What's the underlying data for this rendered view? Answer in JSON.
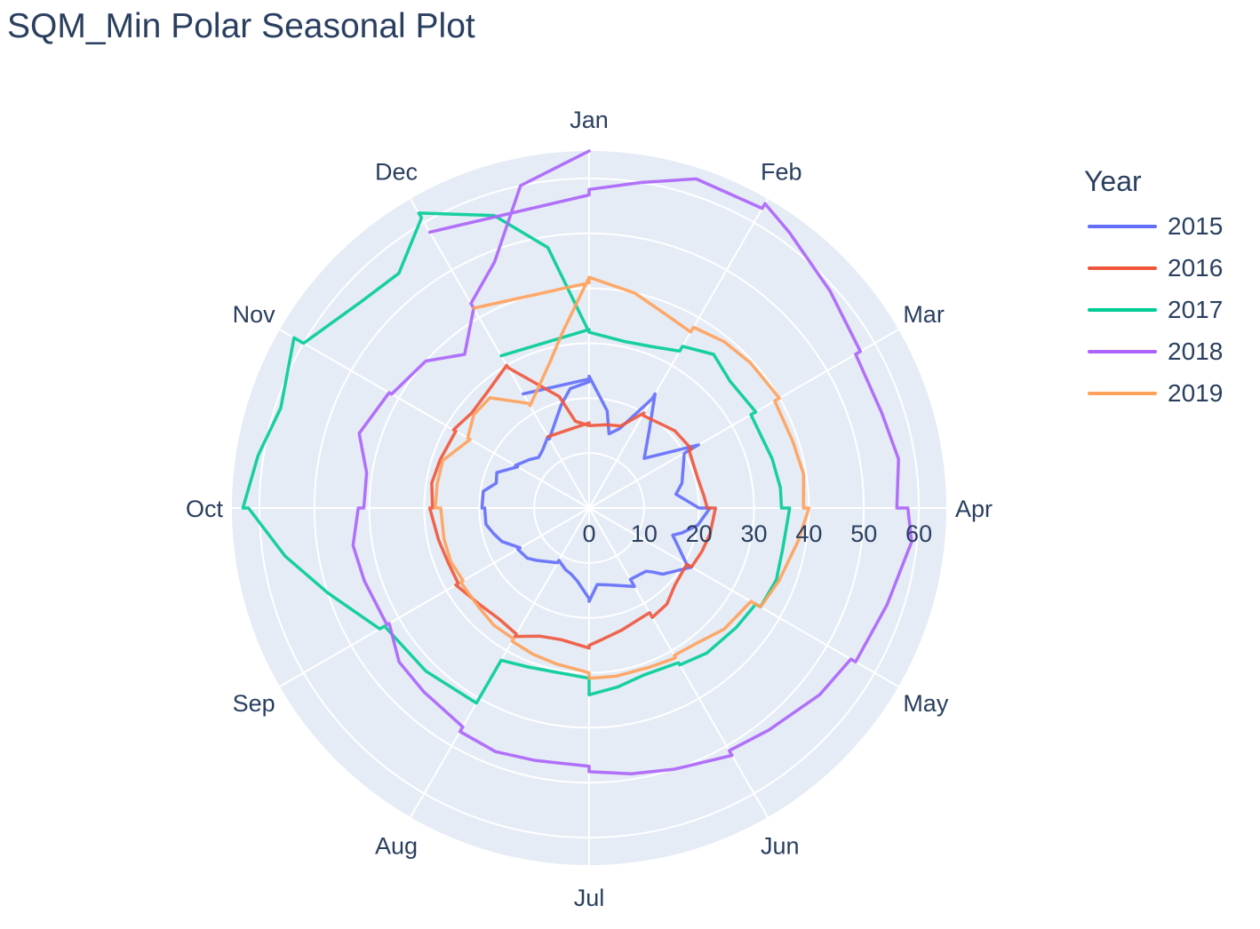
{
  "chart_data": {
    "type": "line",
    "subtype": "polar",
    "title": "SQM_Min Polar Seasonal Plot",
    "categories": [
      "Jan",
      "Feb",
      "Mar",
      "Apr",
      "May",
      "Jun",
      "Jul",
      "Aug",
      "Sep",
      "Oct",
      "Nov",
      "Dec"
    ],
    "radial_ticks": [
      0,
      10,
      20,
      30,
      40,
      50,
      60
    ],
    "radial_range": [
      0,
      65
    ],
    "grid": true,
    "legend": {
      "title": "Year",
      "position": "right"
    },
    "series": [
      {
        "name": "2015",
        "color": "#636efa",
        "points": [
          [
            -1,
            24
          ],
          [
            0,
            23.5
          ],
          [
            0,
            24
          ],
          [
            0.35,
            18
          ],
          [
            0.5,
            14
          ],
          [
            0.7,
            15.5
          ],
          [
            1,
            23
          ],
          [
            1,
            24
          ],
          [
            1.25,
            18
          ],
          [
            1.5,
            14.5
          ],
          [
            1.6,
            13.5
          ],
          [
            2,
            23
          ],
          [
            2,
            22.5
          ],
          [
            2,
            20
          ],
          [
            2.5,
            17.5
          ],
          [
            2.7,
            16
          ],
          [
            3,
            20
          ],
          [
            3,
            22
          ],
          [
            3.3,
            20
          ],
          [
            3.5,
            17.5
          ],
          [
            3.6,
            16
          ],
          [
            4,
            20.5
          ],
          [
            4,
            21.5
          ],
          [
            4.4,
            18
          ],
          [
            4.5,
            16.5
          ],
          [
            4.6,
            15.5
          ],
          [
            5,
            15
          ],
          [
            5,
            16.5
          ],
          [
            5.5,
            14.5
          ],
          [
            5.8,
            14
          ],
          [
            6,
            17
          ],
          [
            6,
            16.5
          ],
          [
            6.3,
            13.5
          ],
          [
            6.5,
            12.5
          ],
          [
            6.7,
            12
          ],
          [
            7,
            11
          ],
          [
            7,
            11.5
          ],
          [
            7.3,
            12.5
          ],
          [
            7.5,
            13.5
          ],
          [
            7.7,
            14.5
          ],
          [
            8,
            15
          ],
          [
            8,
            14.5
          ],
          [
            8.3,
            17
          ],
          [
            8.5,
            18
          ],
          [
            8.7,
            19
          ],
          [
            9,
            19
          ],
          [
            9,
            19.5
          ],
          [
            9.3,
            19.5
          ],
          [
            9.5,
            17.5
          ],
          [
            9.7,
            18
          ],
          [
            10,
            15
          ],
          [
            10,
            15.5
          ],
          [
            10.3,
            14
          ],
          [
            10.5,
            13
          ],
          [
            10.7,
            13.5
          ],
          [
            11,
            15
          ],
          [
            11,
            14.5
          ],
          [
            11.3,
            17
          ],
          [
            11.5,
            19.5
          ],
          [
            11.7,
            22
          ],
          [
            12,
            23
          ]
        ]
      },
      {
        "name": "2016",
        "color": "#EF553B",
        "points": [
          [
            -1,
            15
          ],
          [
            0,
            15.5
          ],
          [
            0,
            15
          ],
          [
            0.4,
            15.5
          ],
          [
            0.7,
            16
          ],
          [
            1,
            20
          ],
          [
            1,
            19.5
          ],
          [
            1.3,
            20
          ],
          [
            1.6,
            21
          ],
          [
            2,
            21.5
          ],
          [
            2,
            21
          ],
          [
            2.5,
            20.5
          ],
          [
            2.8,
            21
          ],
          [
            3,
            21.5
          ],
          [
            3,
            23
          ],
          [
            3.4,
            22.5
          ],
          [
            3.7,
            22
          ],
          [
            4,
            21.5
          ],
          [
            4,
            20.5
          ],
          [
            4.4,
            21
          ],
          [
            4.7,
            22.5
          ],
          [
            5,
            23
          ],
          [
            5,
            22
          ],
          [
            5.5,
            23
          ],
          [
            5.8,
            24
          ],
          [
            6,
            25
          ],
          [
            6,
            25.5
          ],
          [
            6.4,
            24.5
          ],
          [
            6.7,
            25
          ],
          [
            7,
            27
          ],
          [
            7,
            26.5
          ],
          [
            7.3,
            26
          ],
          [
            7.6,
            26.5
          ],
          [
            8,
            28
          ],
          [
            8,
            27.5
          ],
          [
            8.3,
            27.5
          ],
          [
            8.6,
            28
          ],
          [
            9,
            29
          ],
          [
            9,
            28.5
          ],
          [
            9.3,
            29
          ],
          [
            9.6,
            28.5
          ],
          [
            10,
            28
          ],
          [
            10,
            28.5
          ],
          [
            10.3,
            27.5
          ],
          [
            10.6,
            28
          ],
          [
            11,
            30
          ],
          [
            11,
            29.5
          ],
          [
            11.5,
            21
          ],
          [
            11.7,
            16
          ],
          [
            12,
            15
          ]
        ]
      },
      {
        "name": "2017",
        "color": "#00cc96",
        "points": [
          [
            -1,
            32
          ],
          [
            0,
            32.5
          ],
          [
            0,
            32
          ],
          [
            0.4,
            31
          ],
          [
            0.7,
            31.5
          ],
          [
            1,
            33
          ],
          [
            1,
            34
          ],
          [
            1.3,
            36
          ],
          [
            1.6,
            34.5
          ],
          [
            2,
            35
          ],
          [
            2,
            34
          ],
          [
            2.5,
            34.5
          ],
          [
            2.8,
            35
          ],
          [
            3,
            35
          ],
          [
            3,
            36.5
          ],
          [
            3.4,
            36
          ],
          [
            3.7,
            36.5
          ],
          [
            4,
            36
          ],
          [
            4,
            35
          ],
          [
            4.3,
            34.5
          ],
          [
            4.7,
            34
          ],
          [
            5,
            33
          ],
          [
            5,
            32.5
          ],
          [
            5.4,
            32
          ],
          [
            5.7,
            33
          ],
          [
            6,
            34
          ],
          [
            6,
            31
          ],
          [
            6.4,
            30.5
          ],
          [
            6.7,
            31
          ],
          [
            7,
            32
          ],
          [
            7,
            41
          ],
          [
            7.5,
            42
          ],
          [
            8,
            43
          ],
          [
            8,
            44
          ],
          [
            8.4,
            50
          ],
          [
            8.7,
            56
          ],
          [
            9,
            62
          ],
          [
            9,
            63
          ],
          [
            9.3,
            61
          ],
          [
            9.6,
            59
          ],
          [
            10,
            62
          ],
          [
            10,
            60
          ],
          [
            10.4,
            56
          ],
          [
            10.7,
            55
          ],
          [
            11,
            61
          ],
          [
            11,
            62
          ],
          [
            11.4,
            56
          ],
          [
            11.7,
            48
          ],
          [
            12,
            32
          ]
        ]
      },
      {
        "name": "2018",
        "color": "#ab63fa",
        "points": [
          [
            -1,
            58
          ],
          [
            0,
            57
          ],
          [
            0,
            58
          ],
          [
            0.3,
            60
          ],
          [
            0.6,
            63
          ],
          [
            1,
            63
          ],
          [
            1,
            64
          ],
          [
            1.2,
            62
          ],
          [
            1.6,
            59
          ],
          [
            2,
            57
          ],
          [
            2,
            56
          ],
          [
            2.4,
            56
          ],
          [
            2.7,
            57
          ],
          [
            3,
            56
          ],
          [
            3,
            58
          ],
          [
            3.2,
            59
          ],
          [
            3.6,
            57
          ],
          [
            4,
            56
          ],
          [
            4,
            55
          ],
          [
            4.3,
            54
          ],
          [
            4.7,
            52
          ],
          [
            5,
            51
          ],
          [
            5,
            52
          ],
          [
            5.4,
            50
          ],
          [
            5.7,
            49
          ],
          [
            6,
            48
          ],
          [
            6,
            47
          ],
          [
            6.4,
            47
          ],
          [
            6.7,
            47.5
          ],
          [
            7,
            47
          ],
          [
            7,
            46
          ],
          [
            7.4,
            45
          ],
          [
            7.7,
            44.5
          ],
          [
            8,
            42
          ],
          [
            8,
            42.5
          ],
          [
            8.4,
            43
          ],
          [
            8.7,
            43.5
          ],
          [
            9,
            42
          ],
          [
            9,
            41
          ],
          [
            9.3,
            41
          ],
          [
            9.6,
            44
          ],
          [
            10,
            42
          ],
          [
            10,
            41.5
          ],
          [
            10.4,
            40
          ],
          [
            10.7,
            36
          ],
          [
            11,
            42
          ],
          [
            11,
            43
          ],
          [
            11.3,
            48
          ],
          [
            11.6,
            60
          ],
          [
            12,
            65
          ]
        ]
      },
      {
        "name": "2019",
        "color": "#FFA15A",
        "points": [
          [
            -1,
            42
          ],
          [
            0,
            41
          ],
          [
            0,
            42
          ],
          [
            0.4,
            40
          ],
          [
            0.7,
            38
          ],
          [
            1,
            37
          ],
          [
            1,
            38
          ],
          [
            1.3,
            39
          ],
          [
            1.6,
            39.5
          ],
          [
            2,
            40
          ],
          [
            2,
            39
          ],
          [
            2.4,
            39
          ],
          [
            2.7,
            39.5
          ],
          [
            3,
            39
          ],
          [
            3,
            40
          ],
          [
            3.3,
            38.5
          ],
          [
            3.7,
            37
          ],
          [
            4,
            36
          ],
          [
            4,
            34
          ],
          [
            4.4,
            33
          ],
          [
            4.7,
            31.5
          ],
          [
            5,
            31
          ],
          [
            5,
            31.5
          ],
          [
            5.3,
            31
          ],
          [
            5.7,
            31
          ],
          [
            6,
            31
          ],
          [
            6,
            30
          ],
          [
            6.4,
            29
          ],
          [
            6.7,
            28.5
          ],
          [
            7,
            28
          ],
          [
            7,
            27.5
          ],
          [
            7.3,
            27.5
          ],
          [
            7.6,
            27
          ],
          [
            8,
            27
          ],
          [
            8,
            26.5
          ],
          [
            8.3,
            27
          ],
          [
            8.6,
            27
          ],
          [
            9,
            27
          ],
          [
            9,
            28
          ],
          [
            9.3,
            28
          ],
          [
            9.6,
            28
          ],
          [
            10,
            25
          ],
          [
            10,
            25.5
          ],
          [
            10.3,
            27
          ],
          [
            10.6,
            27
          ],
          [
            11,
            22
          ],
          [
            11,
            21.5
          ],
          [
            11.5,
            27.5
          ],
          [
            11.7,
            32
          ],
          [
            12,
            42
          ]
        ]
      }
    ]
  }
}
